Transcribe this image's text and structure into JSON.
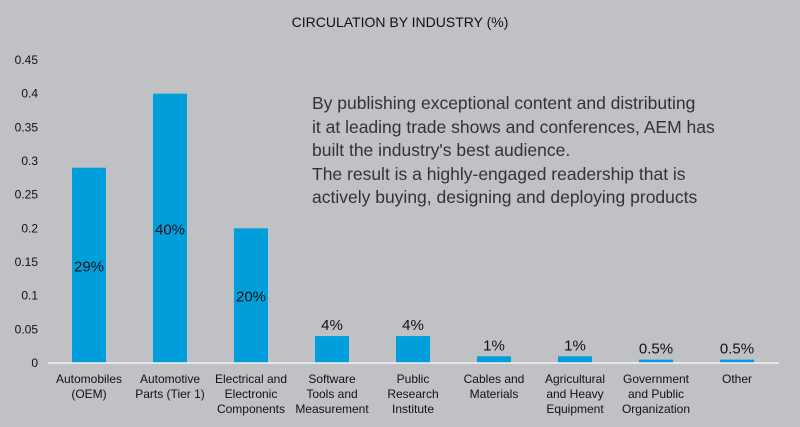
{
  "chart_data": {
    "type": "bar",
    "title": "CIRCULATION BY INDUSTRY (%)",
    "xlabel": "",
    "ylabel": "",
    "ylim": [
      0,
      0.45
    ],
    "yticks": [
      "0",
      "0.05",
      "0.1",
      "0.15",
      "0.2",
      "0.25",
      "0.3",
      "0.35",
      "0.4",
      "0.45"
    ],
    "grid": false,
    "categories": [
      [
        "Automobiles",
        "(OEM)"
      ],
      [
        "Automotive",
        "Parts (Tier 1)"
      ],
      [
        "Electrical and",
        "Electronic",
        "Components"
      ],
      [
        "Software",
        "Tools and",
        "Measurement"
      ],
      [
        "Public",
        "Research",
        "Institute"
      ],
      [
        "Cables and",
        "Materials"
      ],
      [
        "Agricultural",
        "and Heavy",
        "Equipment"
      ],
      [
        "Government",
        "and Public",
        "Organization"
      ],
      [
        "Other"
      ]
    ],
    "values": [
      0.29,
      0.4,
      0.2,
      0.04,
      0.04,
      0.01,
      0.01,
      0.005,
      0.005
    ],
    "data_labels": [
      "29%",
      "40%",
      "20%",
      "4%",
      "4%",
      "1%",
      "1%",
      "0.5%",
      "0.5%"
    ],
    "bar_color": "#009fdb"
  },
  "annotation": [
    "By publishing exceptional content and distributing",
    "it at leading trade shows and conferences, AEM has",
    "built the industry's best audience.",
    "The result is a highly-engaged readership that is",
    "actively buying, designing and deploying products"
  ]
}
